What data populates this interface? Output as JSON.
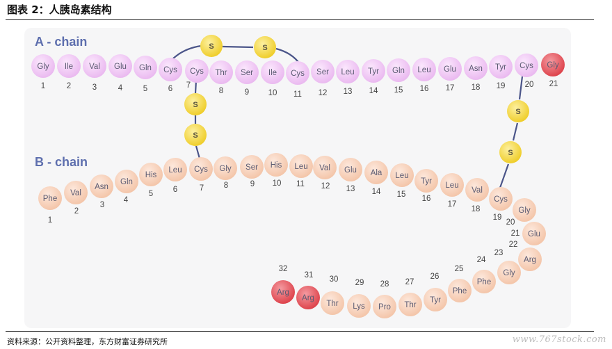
{
  "header": {
    "title": "图表 2：人胰岛素结构"
  },
  "footer": {
    "source": "资料来源：公开资料整理，东方财富证券研究所"
  },
  "watermark": {
    "text": "www.767stock.com"
  },
  "diagram": {
    "a_chain_title": "A - chain",
    "b_chain_title": "B - chain",
    "sulfur_label": "S",
    "colors": {
      "a_chain": "#e9b6ef",
      "b_chain": "#f7cdb3",
      "highlight": "#e0464e",
      "sulfur": "#f4d63a",
      "bond": "#4b5589"
    },
    "a_chain": [
      {
        "res": "Gly",
        "num": "1"
      },
      {
        "res": "Ile",
        "num": "2"
      },
      {
        "res": "Val",
        "num": "3"
      },
      {
        "res": "Glu",
        "num": "4"
      },
      {
        "res": "Gln",
        "num": "5"
      },
      {
        "res": "Cys",
        "num": "6"
      },
      {
        "res": "Cys",
        "num": "7"
      },
      {
        "res": "Thr",
        "num": "8"
      },
      {
        "res": "Ser",
        "num": "9"
      },
      {
        "res": "Ile",
        "num": "10"
      },
      {
        "res": "Cys",
        "num": "11"
      },
      {
        "res": "Ser",
        "num": "12"
      },
      {
        "res": "Leu",
        "num": "13"
      },
      {
        "res": "Tyr",
        "num": "14"
      },
      {
        "res": "Gln",
        "num": "15"
      },
      {
        "res": "Leu",
        "num": "16"
      },
      {
        "res": "Glu",
        "num": "17"
      },
      {
        "res": "Asn",
        "num": "18"
      },
      {
        "res": "Tyr",
        "num": "19"
      },
      {
        "res": "Cys",
        "num": "20"
      },
      {
        "res": "Gly",
        "num": "21",
        "highlight": true
      }
    ],
    "b_chain": [
      {
        "res": "Phe",
        "num": "1"
      },
      {
        "res": "Val",
        "num": "2"
      },
      {
        "res": "Asn",
        "num": "3"
      },
      {
        "res": "Gln",
        "num": "4"
      },
      {
        "res": "His",
        "num": "5"
      },
      {
        "res": "Leu",
        "num": "6"
      },
      {
        "res": "Cys",
        "num": "7"
      },
      {
        "res": "Gly",
        "num": "8"
      },
      {
        "res": "Ser",
        "num": "9"
      },
      {
        "res": "His",
        "num": "10"
      },
      {
        "res": "Leu",
        "num": "11"
      },
      {
        "res": "Val",
        "num": "12"
      },
      {
        "res": "Glu",
        "num": "13"
      },
      {
        "res": "Ala",
        "num": "14"
      },
      {
        "res": "Leu",
        "num": "15"
      },
      {
        "res": "Tyr",
        "num": "16"
      },
      {
        "res": "Leu",
        "num": "17"
      },
      {
        "res": "Val",
        "num": "18"
      },
      {
        "res": "Cys",
        "num": "19"
      },
      {
        "res": "Gly",
        "num": "20"
      },
      {
        "res": "Glu",
        "num": "21"
      },
      {
        "res": "Arg",
        "num": "22"
      },
      {
        "res": "Gly",
        "num": "23"
      },
      {
        "res": "Phe",
        "num": "24"
      },
      {
        "res": "Phe",
        "num": "25"
      },
      {
        "res": "Tyr",
        "num": "26"
      },
      {
        "res": "Thr",
        "num": "27"
      },
      {
        "res": "Pro",
        "num": "28"
      },
      {
        "res": "Lys",
        "num": "29"
      },
      {
        "res": "Thr",
        "num": "30"
      },
      {
        "res": "Arg",
        "num": "31",
        "highlight": true
      },
      {
        "res": "Arg",
        "num": "32",
        "highlight": true
      }
    ],
    "disulfide_bonds": [
      {
        "from": "A6",
        "to": "A11",
        "type": "intra-chain"
      },
      {
        "from": "A7",
        "to": "B7",
        "type": "inter-chain"
      },
      {
        "from": "A20",
        "to": "B19",
        "type": "inter-chain"
      }
    ]
  }
}
